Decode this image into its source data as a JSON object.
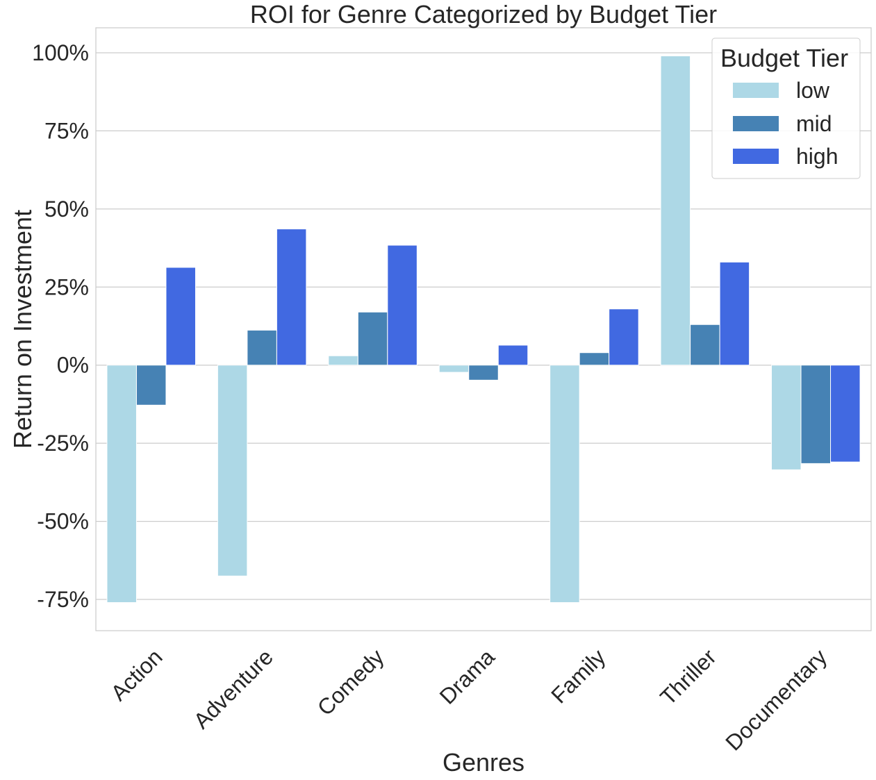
{
  "chart_data": {
    "type": "bar",
    "title": "ROI for Genre Categorized by Budget Tier",
    "xlabel": "Genres",
    "ylabel": "Return on Investment",
    "categories": [
      "Action",
      "Adventure",
      "Comedy",
      "Drama",
      "Family",
      "Thriller",
      "Documentary"
    ],
    "series": [
      {
        "name": "low",
        "color": "#add8e6",
        "values": [
          -76,
          -67.5,
          3,
          -2.3,
          -76,
          99,
          -33.5
        ]
      },
      {
        "name": "mid",
        "color": "#4682b4",
        "values": [
          -12.8,
          11.2,
          17,
          -4.8,
          4,
          13,
          -31.5
        ]
      },
      {
        "name": "high",
        "color": "#4169e1",
        "values": [
          31.3,
          43.6,
          38.4,
          6.4,
          18,
          33,
          -31
        ]
      }
    ],
    "ylim": [
      -85,
      108
    ],
    "yticks": [
      100,
      75,
      50,
      25,
      0,
      -25,
      -50,
      -75
    ],
    "ytick_labels": [
      "100%",
      "75%",
      "50%",
      "25%",
      "0%",
      "-25%",
      "-50%",
      "-75%"
    ],
    "legend": {
      "title": "Budget Tier",
      "position": "top-right"
    },
    "grid": true
  }
}
